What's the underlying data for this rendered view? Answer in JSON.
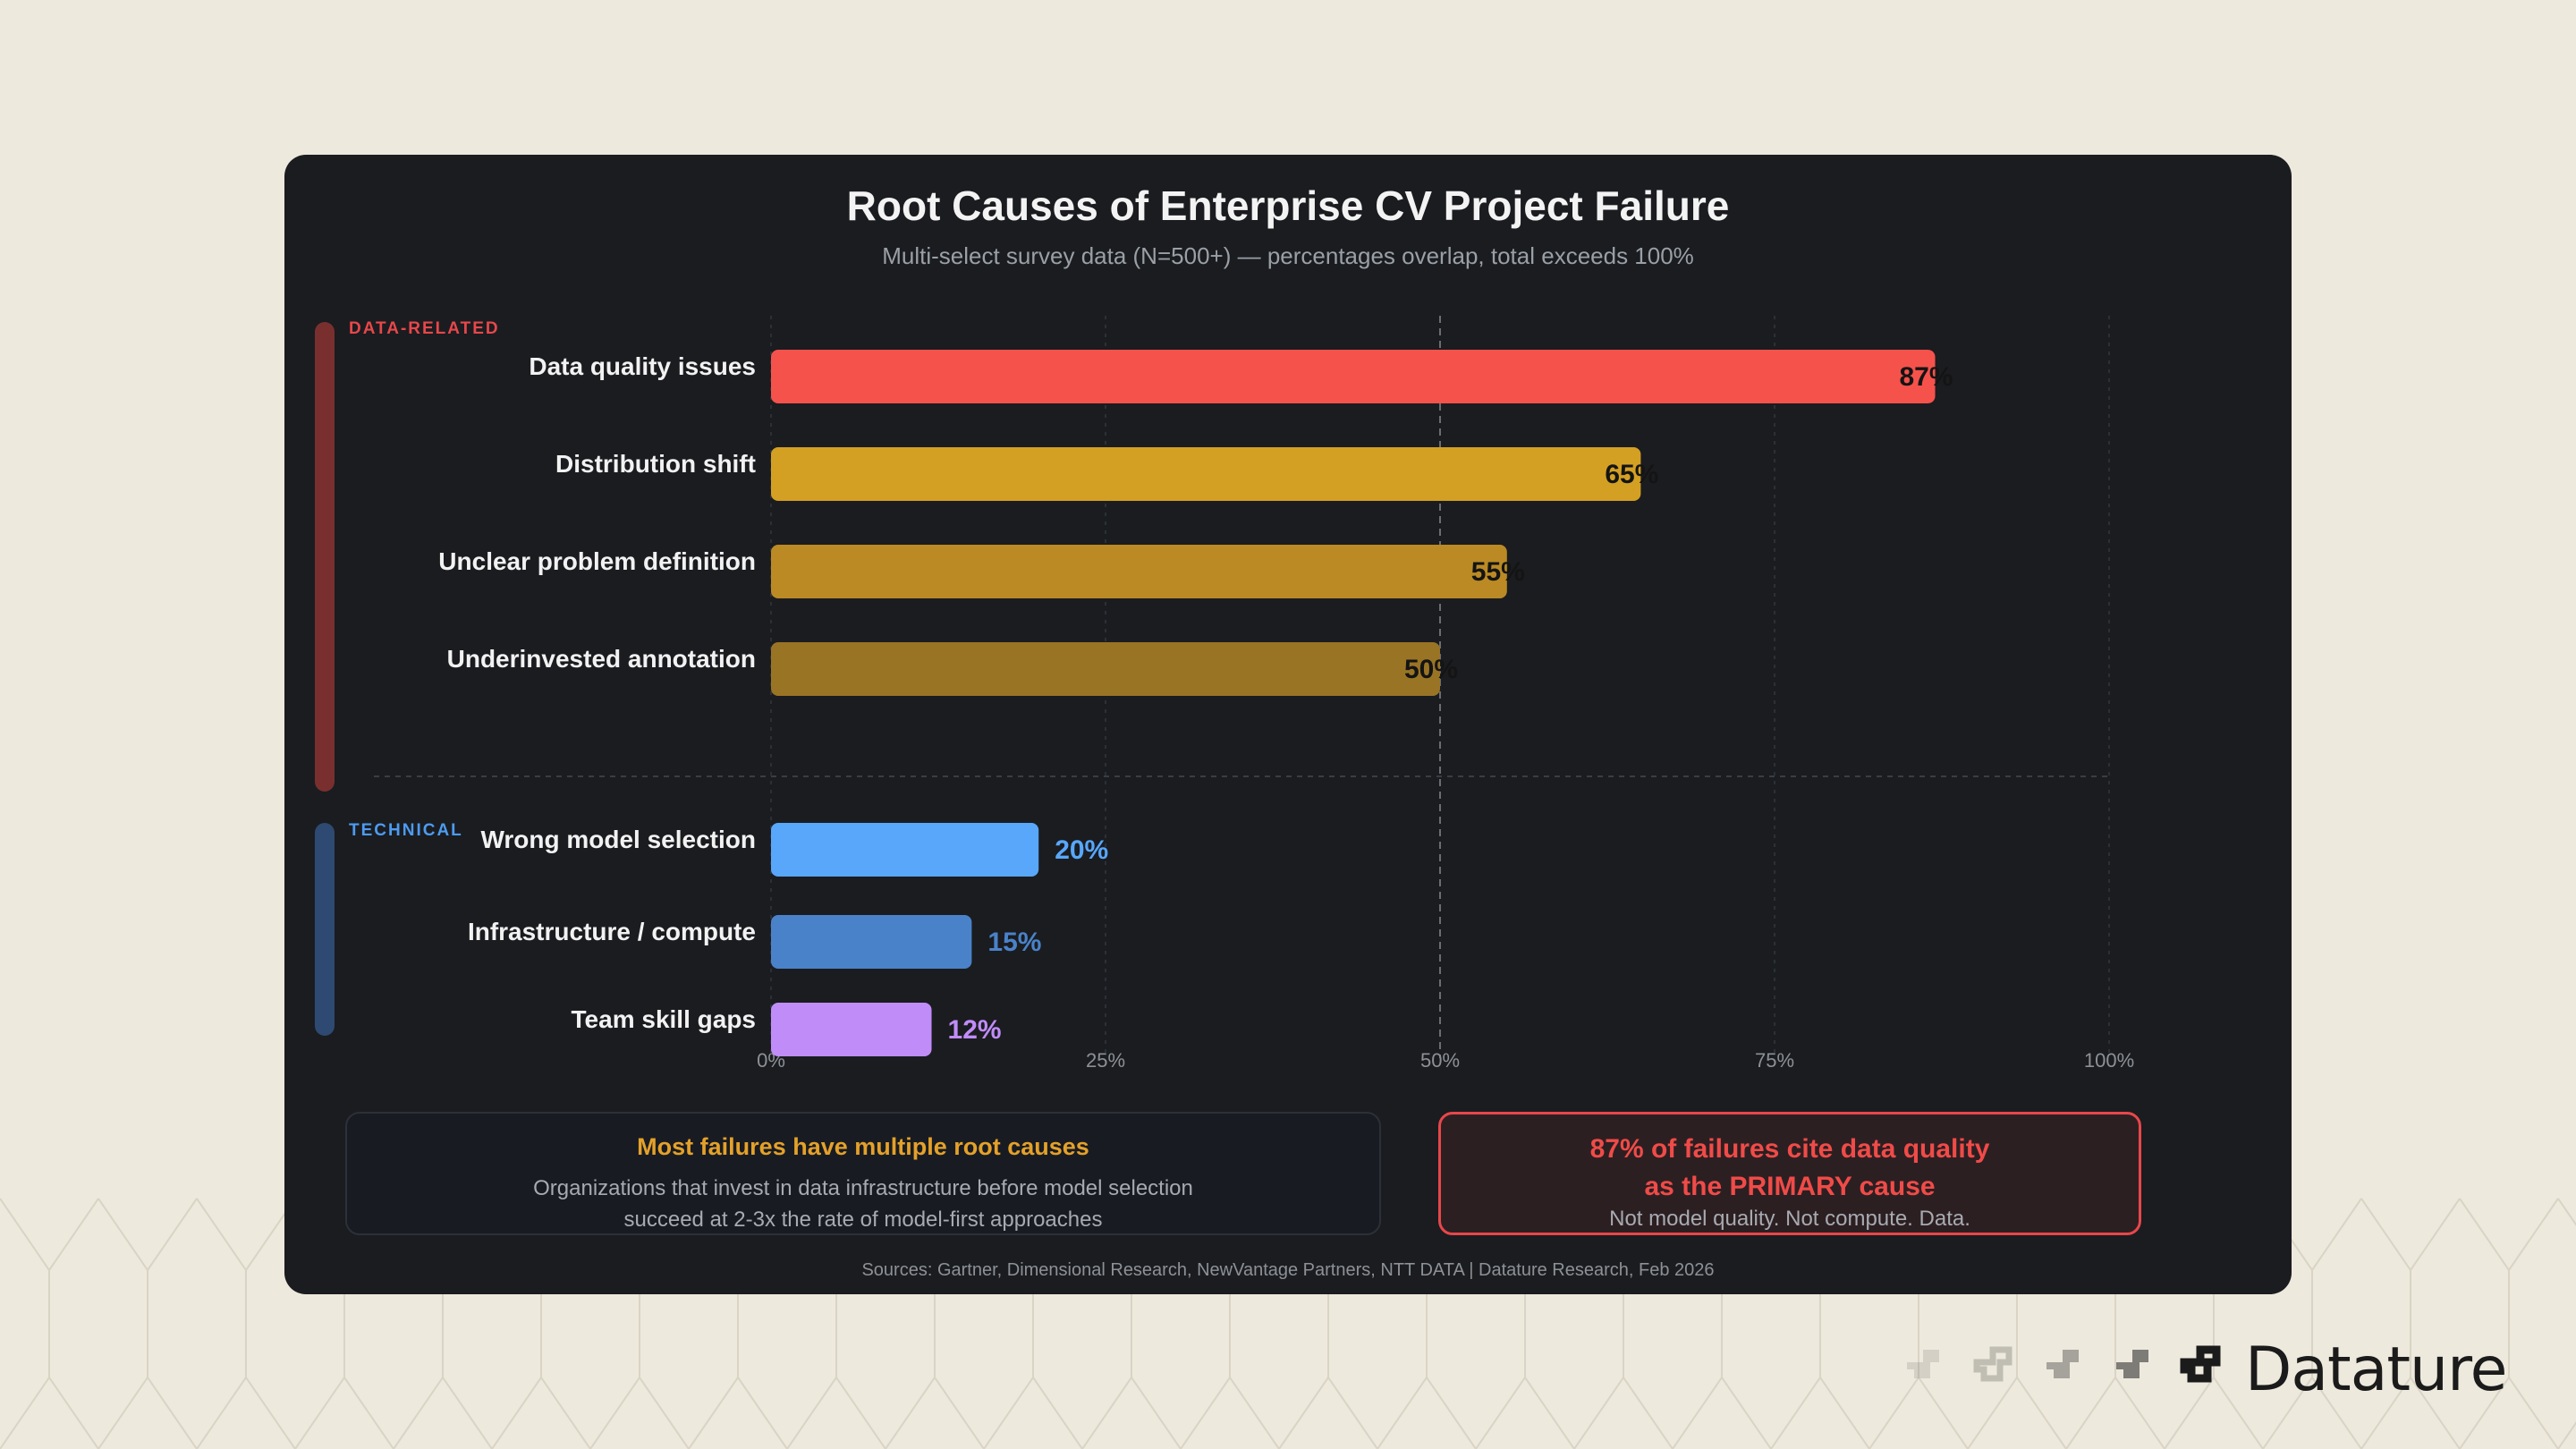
{
  "chart_data": {
    "type": "bar",
    "orientation": "horizontal",
    "title": "Root Causes of Enterprise CV Project Failure",
    "subtitle": "Multi-select survey data (N=500+) — percentages overlap, total exceeds 100%",
    "xlim": [
      0,
      100
    ],
    "x_ticks": [
      "0%",
      "25%",
      "50%",
      "75%",
      "100%"
    ],
    "grid": true,
    "reference_line": 50,
    "groups": [
      {
        "label": "DATA-RELATED",
        "color": "#7a2f2f",
        "label_color": "#e8474a",
        "items": [
          {
            "category": "Data quality issues",
            "value": 87,
            "label": "87%",
            "color": "#f5524c"
          },
          {
            "category": "Distribution shift",
            "value": 65,
            "label": "65%",
            "color": "#d4a023"
          },
          {
            "category": "Unclear problem definition",
            "value": 55,
            "label": "55%",
            "color": "#bb8a24"
          },
          {
            "category": "Underinvested annotation",
            "value": 50,
            "label": "50%",
            "color": "#9a7425"
          }
        ]
      },
      {
        "label": "TECHNICAL",
        "color": "#2e4a72",
        "label_color": "#4d9bf0",
        "items": [
          {
            "category": "Wrong model selection",
            "value": 20,
            "label": "20%",
            "color": "#58a7fb"
          },
          {
            "category": "Infrastructure / compute",
            "value": 15,
            "label": "15%",
            "color": "#4a82c9"
          },
          {
            "category": "Team skill gaps",
            "value": 12,
            "label": "12%",
            "color": "#c08cf8"
          }
        ]
      }
    ]
  },
  "callouts": {
    "left": {
      "title": "Most failures have multiple root causes",
      "body_line1": "Organizations that invest in data infrastructure before model selection",
      "body_line2": "succeed at 2-3x the rate of model-first approaches"
    },
    "right": {
      "title_line1": "87% of failures cite data quality",
      "title_line2": "as the PRIMARY cause",
      "note": "Not model quality. Not compute. Data."
    }
  },
  "sources": "Sources: Gartner, Dimensional Research, NewVantage Partners, NTT DATA | Datature Research, Feb 2026",
  "brand": {
    "name": "Datature",
    "icon": "datature-logo-icon"
  }
}
